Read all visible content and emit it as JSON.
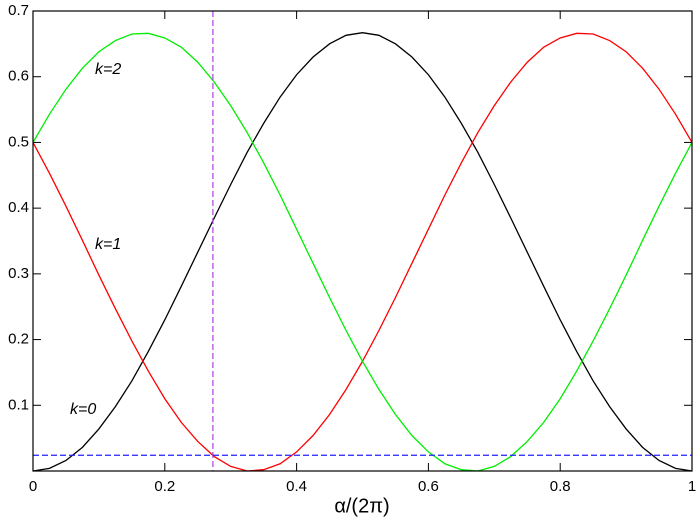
{
  "chart_data": {
    "type": "line",
    "x_label": "α/(2π)",
    "x": [
      0,
      0.025,
      0.05,
      0.075,
      0.1,
      0.125,
      0.15,
      0.175,
      0.2,
      0.225,
      0.25,
      0.275,
      0.3,
      0.325,
      0.35,
      0.375,
      0.4,
      0.425,
      0.45,
      0.475,
      0.5,
      0.525,
      0.55,
      0.575,
      0.6,
      0.625,
      0.65,
      0.675,
      0.7,
      0.725,
      0.75,
      0.775,
      0.8,
      0.825,
      0.85,
      0.875,
      0.9,
      0.925,
      0.95,
      0.975,
      1
    ],
    "series": [
      {
        "name": "k=0",
        "color": "#000000",
        "values": [
          0,
          0.004,
          0.016,
          0.036,
          0.064,
          0.098,
          0.137,
          0.182,
          0.23,
          0.281,
          0.333,
          0.385,
          0.436,
          0.485,
          0.529,
          0.569,
          0.603,
          0.63,
          0.65,
          0.663,
          0.667,
          0.663,
          0.65,
          0.63,
          0.603,
          0.569,
          0.529,
          0.485,
          0.436,
          0.385,
          0.333,
          0.281,
          0.23,
          0.182,
          0.137,
          0.098,
          0.064,
          0.036,
          0.016,
          0.004,
          0
        ]
      },
      {
        "name": "k=1",
        "color": "#ff0000",
        "values": [
          0.5,
          0.453,
          0.403,
          0.351,
          0.298,
          0.247,
          0.198,
          0.152,
          0.11,
          0.074,
          0.045,
          0.022,
          0.007,
          0.0,
          0.002,
          0.011,
          0.029,
          0.054,
          0.086,
          0.124,
          0.167,
          0.214,
          0.264,
          0.316,
          0.368,
          0.42,
          0.469,
          0.515,
          0.556,
          0.592,
          0.622,
          0.645,
          0.659,
          0.666,
          0.665,
          0.655,
          0.638,
          0.613,
          0.581,
          0.543,
          0.5
        ]
      },
      {
        "name": "k=2",
        "color": "#00ee00",
        "values": [
          0.5,
          0.543,
          0.581,
          0.613,
          0.638,
          0.655,
          0.665,
          0.666,
          0.659,
          0.645,
          0.622,
          0.592,
          0.556,
          0.515,
          0.469,
          0.42,
          0.368,
          0.316,
          0.264,
          0.214,
          0.167,
          0.124,
          0.086,
          0.054,
          0.029,
          0.011,
          0.002,
          0.0,
          0.007,
          0.022,
          0.045,
          0.074,
          0.11,
          0.152,
          0.198,
          0.247,
          0.298,
          0.351,
          0.403,
          0.453,
          0.5
        ]
      }
    ],
    "vline": {
      "value": 0.273,
      "color": "#b040e0"
    },
    "hline": {
      "value": 0.024,
      "color": "#2020ff"
    },
    "xlim": [
      0,
      1
    ],
    "xticks": [
      0,
      0.2,
      0.4,
      0.6,
      0.8,
      1
    ],
    "ylim": [
      0,
      0.7
    ],
    "yticks": [
      0.1,
      0.2,
      0.3,
      0.4,
      0.5,
      0.6,
      0.7
    ]
  }
}
